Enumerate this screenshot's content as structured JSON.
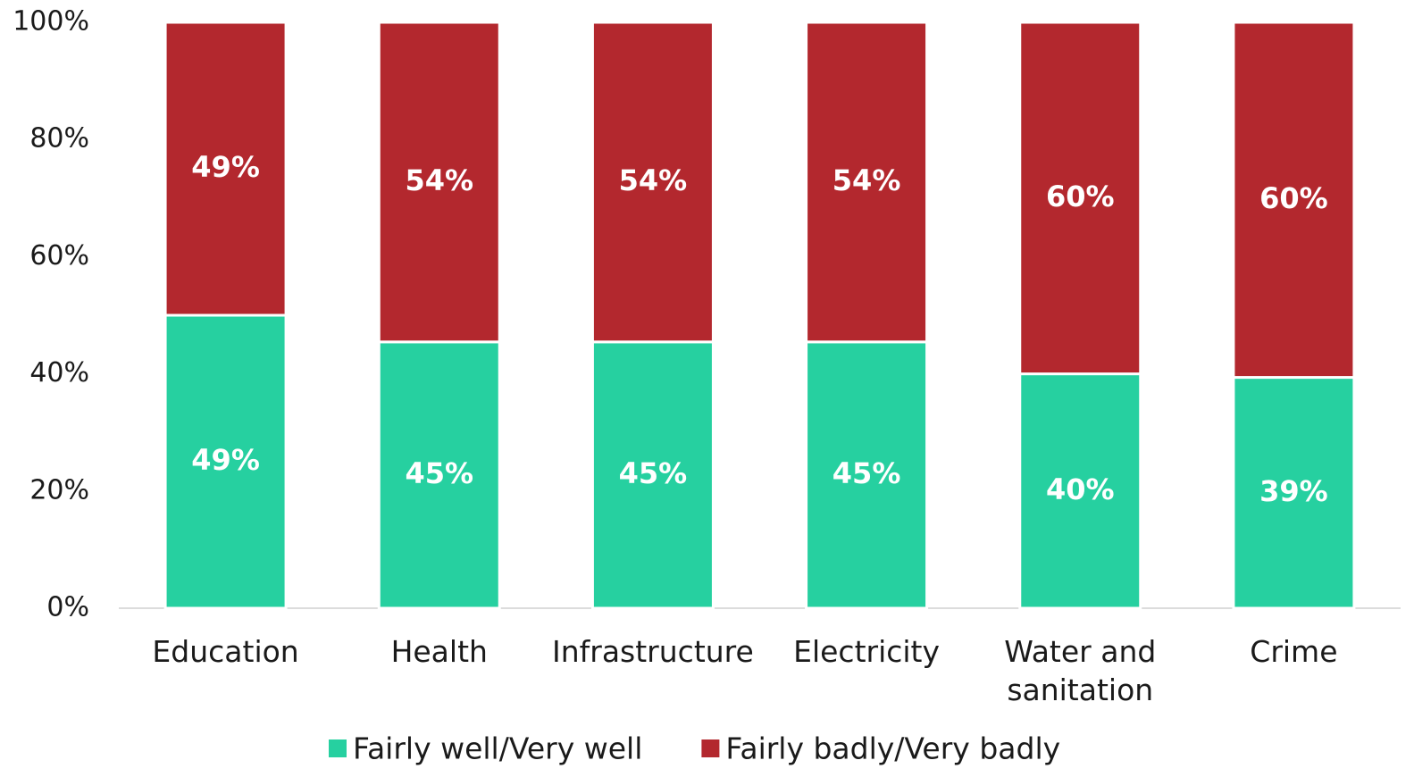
{
  "chart_data": {
    "type": "bar",
    "stacking": "percent",
    "categories": [
      "Education",
      "Health",
      "Infrastructure",
      "Electricity",
      "Water and sanitation",
      "Crime"
    ],
    "series": [
      {
        "name": "Fairly well/Very well",
        "color": "#26d0a0",
        "values": [
          49,
          45,
          45,
          45,
          40,
          39
        ],
        "value_labels": [
          "49%",
          "45%",
          "45%",
          "45%",
          "40%",
          "39%"
        ]
      },
      {
        "name": "Fairly badly/Very badly",
        "color": "#b3282e",
        "values": [
          49,
          54,
          54,
          54,
          60,
          60
        ],
        "value_labels": [
          "49%",
          "54%",
          "54%",
          "54%",
          "60%",
          "60%"
        ]
      }
    ],
    "ylim": [
      0,
      100
    ],
    "yticks": [
      {
        "value": 0,
        "label": "0%"
      },
      {
        "value": 20,
        "label": "20%"
      },
      {
        "value": 40,
        "label": "40%"
      },
      {
        "value": 60,
        "label": "60%"
      },
      {
        "value": 80,
        "label": "80%"
      },
      {
        "value": 100,
        "label": "100%"
      }
    ],
    "grid": false,
    "legend": "bottom"
  }
}
